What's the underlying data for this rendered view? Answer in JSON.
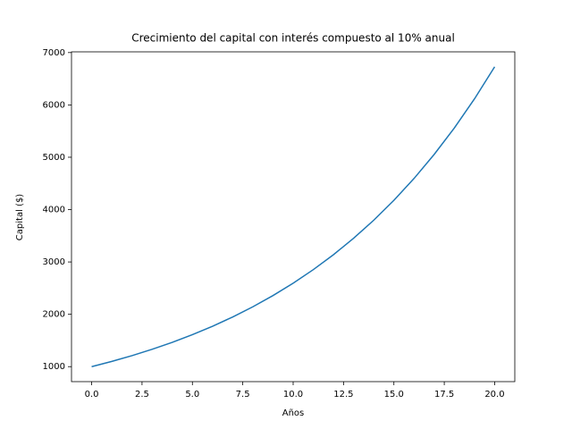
{
  "chart_data": {
    "type": "line",
    "title": "Crecimiento del capital con interés compuesto al 10% anual",
    "x_label": "Años",
    "y_label": "Capital ($)",
    "x": [
      0,
      1,
      2,
      3,
      4,
      5,
      6,
      7,
      8,
      9,
      10,
      11,
      12,
      13,
      14,
      15,
      16,
      17,
      18,
      19,
      20
    ],
    "series": [
      {
        "color": "#1f77b4",
        "values": [
          1000,
          1100,
          1210,
          1331,
          1464.1,
          1610.51,
          1771.56,
          1948.72,
          2143.59,
          2357.95,
          2593.74,
          2853.12,
          3138.43,
          3452.27,
          3797.5,
          4177.25,
          4594.97,
          5054.47,
          5559.92,
          6115.91,
          6727.5
        ]
      }
    ],
    "xlim": [
      -1,
      21
    ],
    "ylim": [
      713.6,
      7013.9
    ],
    "xticks": [
      {
        "value": 0,
        "label": "0.0"
      },
      {
        "value": 2.5,
        "label": "2.5"
      },
      {
        "value": 5,
        "label": "5.0"
      },
      {
        "value": 7.5,
        "label": "7.5"
      },
      {
        "value": 10,
        "label": "10.0"
      },
      {
        "value": 12.5,
        "label": "12.5"
      },
      {
        "value": 15,
        "label": "15.0"
      },
      {
        "value": 17.5,
        "label": "17.5"
      },
      {
        "value": 20,
        "label": "20.0"
      }
    ],
    "yticks": [
      1000,
      2000,
      3000,
      4000,
      5000,
      6000,
      7000
    ]
  }
}
